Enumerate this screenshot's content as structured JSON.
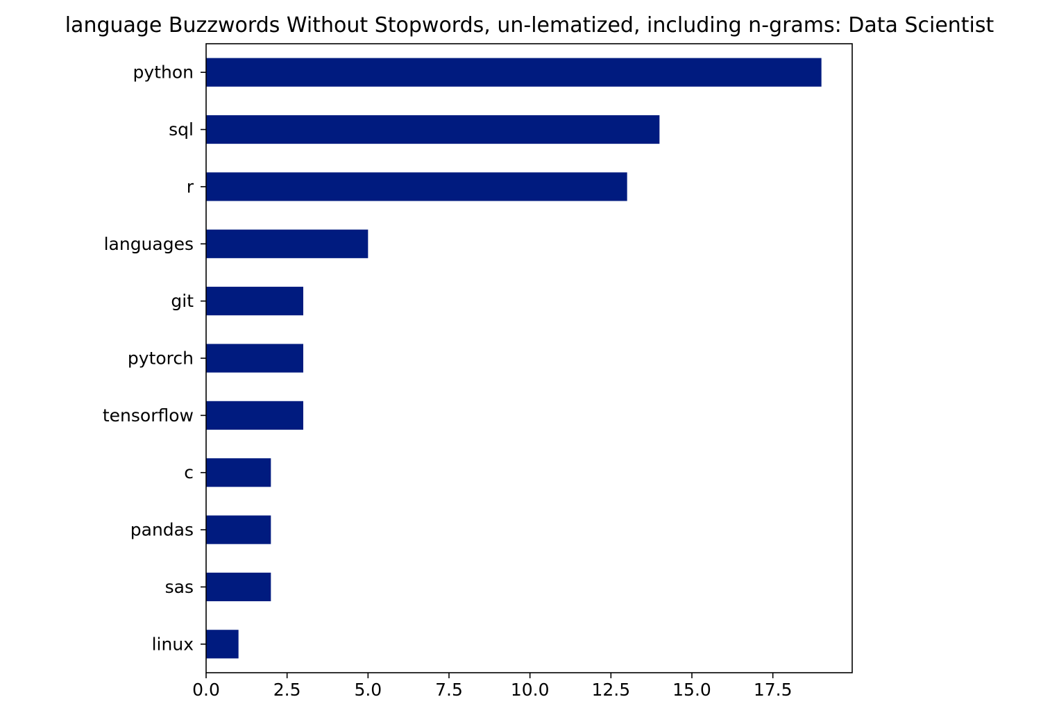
{
  "chart_data": {
    "type": "bar",
    "orientation": "horizontal",
    "title": "language Buzzwords Without Stopwords, un-lematized, including n-grams: Data Scientist",
    "xlabel": "",
    "ylabel": "",
    "categories": [
      "python",
      "sql",
      "r",
      "languages",
      "git",
      "pytorch",
      "tensorflow",
      "c",
      "pandas",
      "sas",
      "linux"
    ],
    "values": [
      19,
      14,
      13,
      5,
      3,
      3,
      3,
      2,
      2,
      2,
      1
    ],
    "xlim": [
      0,
      19.95
    ],
    "xticks": [
      0,
      2.5,
      5,
      7.5,
      10,
      12.5,
      15,
      17.5
    ],
    "xtick_labels": [
      "0.0",
      "2.5",
      "5.0",
      "7.5",
      "10.0",
      "12.5",
      "15.0",
      "17.5"
    ],
    "grid": false,
    "legend": "none",
    "bar_color": "#001b7f"
  }
}
